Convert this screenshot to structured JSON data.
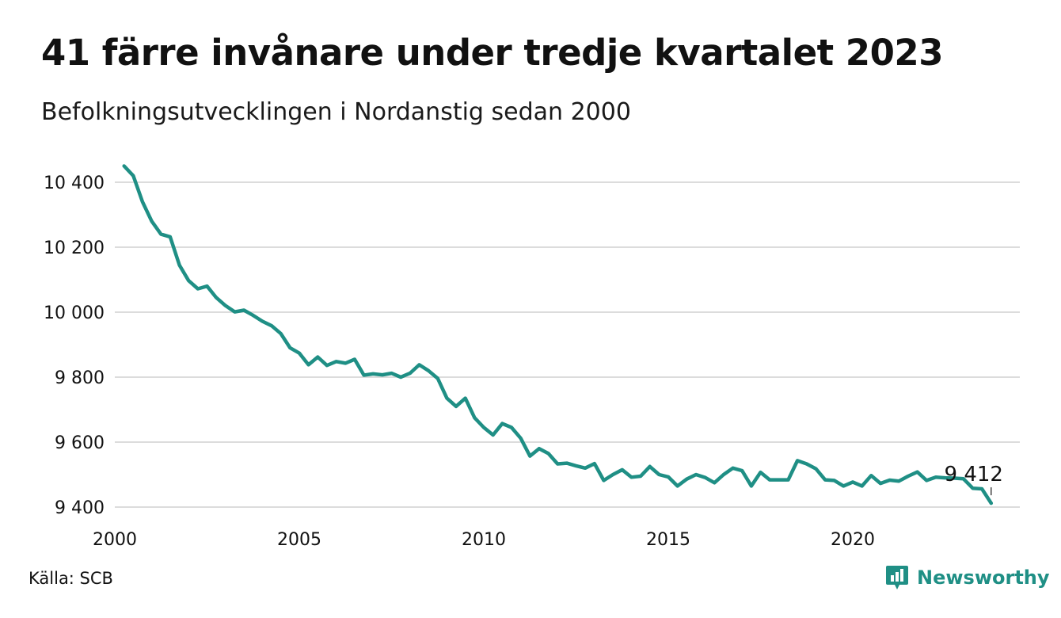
{
  "chart_data": {
    "type": "line",
    "title": "41 färre invånare under tredje kvartalet 2023",
    "subtitle": "Befolkningsutvecklingen i Nordanstig sedan 2000",
    "xlabel": "",
    "ylabel": "",
    "x_ticks": [
      "2000",
      "2005",
      "2010",
      "2015",
      "2020"
    ],
    "y_ticks": [
      "9 400",
      "9 600",
      "9 800",
      "10 000",
      "10 200",
      "10 400"
    ],
    "ylim": [
      9380,
      10460
    ],
    "xlim": [
      2000,
      2024
    ],
    "grid": "horizontal",
    "line_color": "#1f8f85",
    "end_label": "9 412",
    "series": [
      {
        "x": [
          2000.25,
          2000.5,
          2000.75,
          2001.0,
          2001.25,
          2001.5,
          2001.75,
          2002.0,
          2002.25,
          2002.5,
          2002.75,
          2003.0,
          2003.25,
          2003.5,
          2003.75,
          2004.0,
          2004.25,
          2004.5,
          2004.75,
          2005.0,
          2005.25,
          2005.5,
          2005.75,
          2006.0,
          2006.25,
          2006.5,
          2006.75,
          2007.0,
          2007.25,
          2007.5,
          2007.75,
          2008.0,
          2008.25,
          2008.5,
          2008.75,
          2009.0,
          2009.25,
          2009.5,
          2009.75,
          2010.0,
          2010.25,
          2010.5,
          2010.75,
          2011.0,
          2011.25,
          2011.5,
          2011.75,
          2012.0,
          2012.25,
          2012.5,
          2012.75,
          2013.0,
          2013.25,
          2013.5,
          2013.75,
          2014.0,
          2014.25,
          2014.5,
          2014.75,
          2015.0,
          2015.25,
          2015.5,
          2015.75,
          2016.0,
          2016.25,
          2016.5,
          2016.75,
          2017.0,
          2017.25,
          2017.5,
          2017.75,
          2018.0,
          2018.25,
          2018.5,
          2018.75,
          2019.0,
          2019.25,
          2019.5,
          2019.75,
          2020.0,
          2020.25,
          2020.5,
          2020.75,
          2021.0,
          2021.25,
          2021.5,
          2021.75,
          2022.0,
          2022.25,
          2022.5,
          2022.75,
          2023.0,
          2023.25,
          2023.5,
          2023.75
        ],
        "values": [
          10450,
          10420,
          10340,
          10280,
          10240,
          10232,
          10145,
          10097,
          10072,
          10080,
          10045,
          10020,
          10001,
          10006,
          9990,
          9972,
          9958,
          9934,
          9890,
          9874,
          9838,
          9862,
          9836,
          9848,
          9843,
          9855,
          9806,
          9810,
          9807,
          9812,
          9800,
          9812,
          9838,
          9820,
          9796,
          9735,
          9710,
          9735,
          9675,
          9645,
          9622,
          9657,
          9645,
          9612,
          9557,
          9580,
          9565,
          9533,
          9535,
          9527,
          9520,
          9534,
          9482,
          9500,
          9515,
          9492,
          9495,
          9525,
          9500,
          9493,
          9465,
          9486,
          9500,
          9491,
          9475,
          9500,
          9520,
          9512,
          9465,
          9507,
          9484,
          9484,
          9484,
          9543,
          9533,
          9518,
          9484,
          9482,
          9465,
          9477,
          9465,
          9497,
          9473,
          9483,
          9480,
          9495,
          9508,
          9482,
          9492,
          9490,
          9489,
          9487,
          9458,
          9456,
          9412
        ]
      }
    ]
  },
  "footer": {
    "source": "Källa: SCB",
    "brand": "Newsworthy"
  }
}
